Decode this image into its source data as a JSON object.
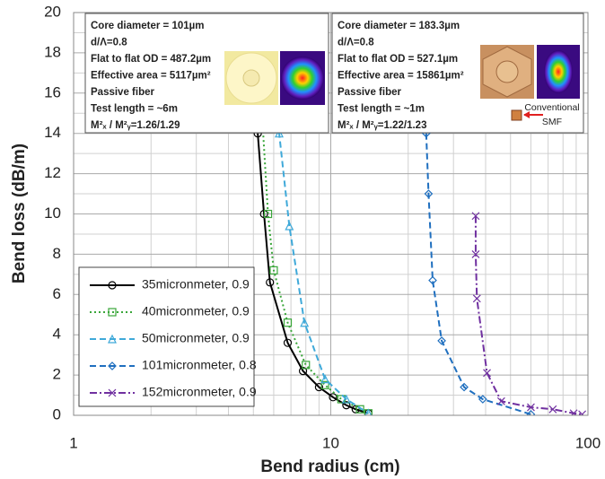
{
  "chart_data": {
    "type": "line",
    "xscale": "log",
    "xlabel": "Bend radius (cm)",
    "ylabel": "Bend loss (dB/m)",
    "xlim": [
      1,
      100
    ],
    "ylim": [
      0,
      20
    ],
    "xticks": [
      1,
      10,
      100
    ],
    "xgrid_minor": [
      2,
      3,
      4,
      5,
      6,
      7,
      8,
      9,
      20,
      30,
      40,
      50,
      60,
      70,
      80,
      90
    ],
    "yticks": [
      0,
      2,
      4,
      6,
      8,
      10,
      12,
      14,
      16,
      18,
      20
    ],
    "ygrid_minor": [
      1,
      3,
      5,
      7,
      9,
      11,
      13,
      15,
      17,
      19
    ],
    "grid": true,
    "legend": "lower left",
    "series": [
      {
        "name": "35micronmeter, 0.9",
        "color": "#000000",
        "dash": "solid",
        "marker": "circle",
        "x": [
          5.2,
          5.5,
          5.8,
          6.8,
          7.8,
          9,
          10.2,
          11.5,
          12.5,
          14
        ],
        "values": [
          14,
          10,
          6.6,
          3.6,
          2.2,
          1.4,
          0.9,
          0.5,
          0.3,
          0.1
        ]
      },
      {
        "name": "40micronmeter, 0.9",
        "color": "#3aa63a",
        "dash": "dotted",
        "marker": "square",
        "x": [
          5.4,
          5.7,
          6.0,
          6.8,
          8,
          9.5,
          11,
          13,
          14
        ],
        "values": [
          15,
          10,
          7.2,
          4.6,
          2.5,
          1.5,
          0.8,
          0.3,
          0.1
        ]
      },
      {
        "name": "50micronmeter, 0.9",
        "color": "#3fa9d9",
        "dash": "dashed",
        "marker": "triangle",
        "x": [
          6.0,
          6.3,
          6.9,
          7.9,
          9.5,
          11.5,
          14
        ],
        "values": [
          18,
          14,
          9.4,
          4.6,
          1.8,
          0.8,
          0.1
        ]
      },
      {
        "name": "101micronmeter, 0.8",
        "color": "#1f6fbf",
        "dash": "dashed",
        "marker": "diamond",
        "x": [
          23.5,
          24,
          24.9,
          27,
          33,
          39,
          60
        ],
        "values": [
          14,
          11,
          6.7,
          3.7,
          1.4,
          0.8,
          0.05
        ]
      },
      {
        "name": "152micronmeter, 0.9",
        "color": "#7030a0",
        "dash": "dashdot",
        "marker": "x",
        "x": [
          36.6,
          36.6,
          37,
          40.5,
          46,
          60,
          73,
          88,
          95
        ],
        "values": [
          9.9,
          8,
          5.8,
          2.1,
          0.7,
          0.4,
          0.3,
          0.1,
          0.05
        ]
      }
    ],
    "annotations": [
      {
        "lines": [
          "Core diameter = 101µm",
          "d/Λ=0.8",
          "Flat to flat OD =  487.2µm",
          "Effective area = 5117µm²",
          "Passive fiber",
          "Test length = ~6m",
          "M²ₓ / M²ᵧ=1.26/1.29"
        ]
      },
      {
        "lines": [
          "Core diameter = 183.3µm",
          "d/Λ=0.8",
          "Flat to flat OD =  527.1µm",
          "Effective area = 15861µm²",
          "Passive fiber",
          "Test length = ~1m",
          "M²ₓ / M²ᵧ=1.22/1.23"
        ],
        "smf_label": [
          "Conventional",
          "SMF"
        ]
      }
    ]
  }
}
